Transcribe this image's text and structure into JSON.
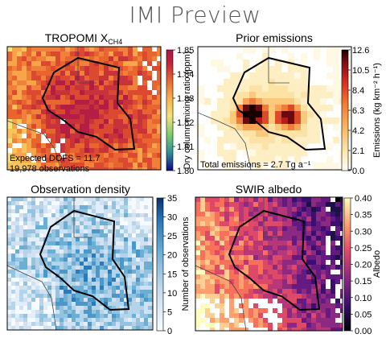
{
  "header": {
    "title": "IMI Preview"
  },
  "chart_data": [
    {
      "type": "heatmap",
      "title": "TROPOMI X",
      "title_sub": "CH4",
      "colorbar_label": "Dry column mixing ratio (ppm)",
      "colorscale": "plasma",
      "clim": [
        1.8,
        1.85
      ],
      "ticks": [
        "1.85",
        "1.84",
        "1.83",
        "1.82",
        "1.81",
        "1.80"
      ],
      "annotations": [
        "Expected DOFS = 11.7",
        "19,978 observations"
      ]
    },
    {
      "type": "heatmap",
      "title": "Prior emissions",
      "colorbar_label": "Emissions (kg km⁻² h⁻¹)",
      "colorscale": "cream-red-black",
      "clim": [
        0.0,
        12.6
      ],
      "ticks": [
        "12.6",
        "10.5",
        "8.4",
        "6.3",
        "4.2",
        "2.1",
        "0.0"
      ],
      "annotations": [
        "Total emissions = 2.7 Tg a⁻¹"
      ]
    },
    {
      "type": "heatmap",
      "title": "Observation density",
      "colorbar_label": "Number of observations",
      "colorscale": "blues",
      "clim": [
        0,
        35
      ],
      "ticks": [
        "35",
        "30",
        "25",
        "20",
        "15",
        "10",
        "5",
        "0"
      ],
      "annotations": []
    },
    {
      "type": "heatmap",
      "title": "SWIR albedo",
      "colorbar_label": "Albedo",
      "colorscale": "magma",
      "clim": [
        0.0,
        0.4
      ],
      "ticks": [
        "0.40",
        "0.35",
        "0.30",
        "0.25",
        "0.20",
        "0.15",
        "0.10",
        "0.05",
        "0.00"
      ],
      "annotations": []
    }
  ]
}
